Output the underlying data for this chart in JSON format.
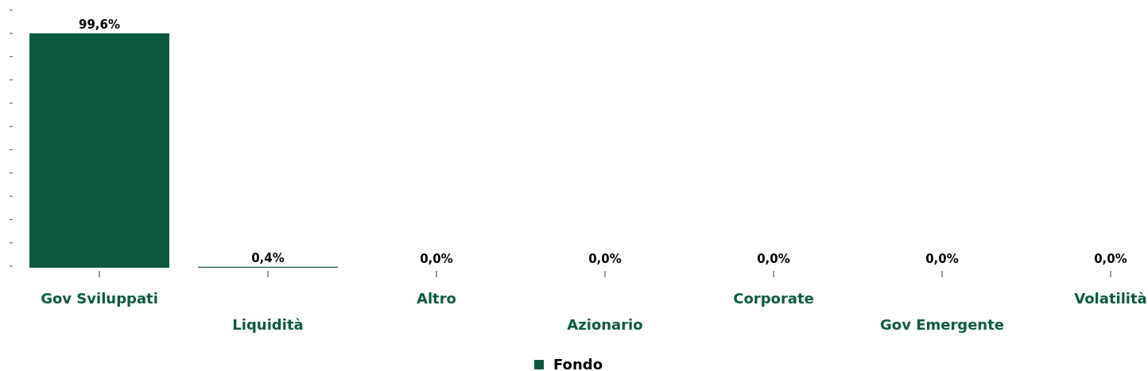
{
  "chart_data": {
    "type": "bar",
    "categories": [
      "Gov Sviluppati",
      "Liquidità",
      "Altro",
      "Azionario",
      "Corporate",
      "Gov Emergente",
      "Volatilità"
    ],
    "series": [
      {
        "name": "Fondo",
        "color": "#0b5a40",
        "values": [
          99.6,
          0.4,
          0.0,
          0.0,
          0.0,
          0.0,
          0.0
        ],
        "value_labels": [
          "99,6%",
          "0,4%",
          "0,0%",
          "0,0%",
          "0,0%",
          "0,0%",
          "0,0%"
        ]
      }
    ],
    "legend": "bottom"
  }
}
